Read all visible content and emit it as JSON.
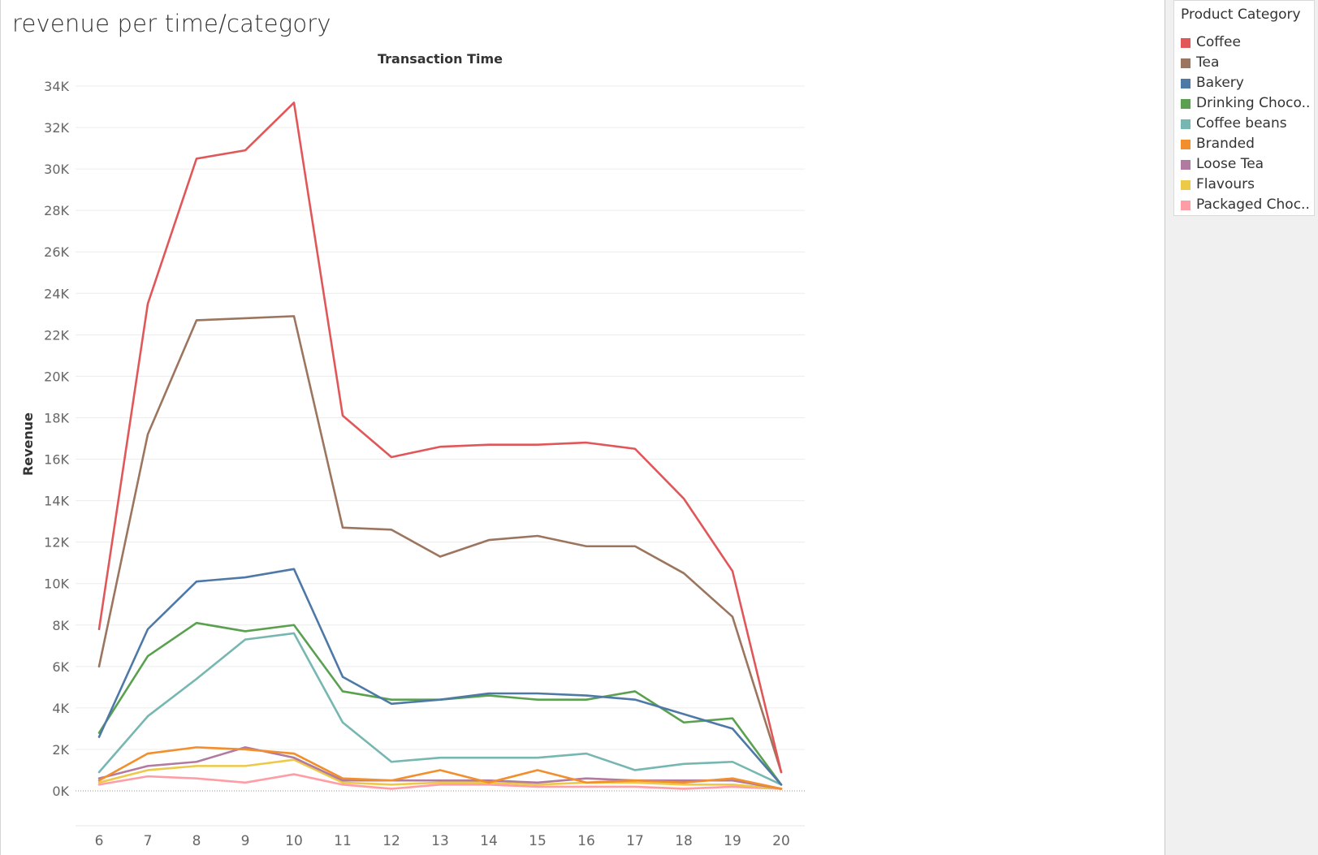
{
  "sheet": {
    "title": "revenue per time/category"
  },
  "legend": {
    "title": "Product Category",
    "items": [
      {
        "label": "Coffee",
        "color": "#e15759"
      },
      {
        "label": "Tea",
        "color": "#9c755f"
      },
      {
        "label": "Bakery",
        "color": "#4e79a7"
      },
      {
        "label": "Drinking Choco..",
        "color": "#59a14f"
      },
      {
        "label": "Coffee beans",
        "color": "#76b7b2"
      },
      {
        "label": "Branded",
        "color": "#f28e2b"
      },
      {
        "label": "Loose Tea",
        "color": "#b07aa1"
      },
      {
        "label": "Flavours",
        "color": "#edc948"
      },
      {
        "label": "Packaged Choc..",
        "color": "#ff9da7"
      }
    ]
  },
  "chart_data": {
    "type": "line",
    "title": "Transaction Time",
    "xlabel": "",
    "ylabel": "Revenue",
    "ylim": [
      0,
      34000
    ],
    "y_ticks": [
      "0K",
      "2K",
      "4K",
      "6K",
      "8K",
      "10K",
      "12K",
      "14K",
      "16K",
      "18K",
      "20K",
      "22K",
      "24K",
      "26K",
      "28K",
      "30K",
      "32K",
      "34K"
    ],
    "y_tick_values": [
      0,
      2000,
      4000,
      6000,
      8000,
      10000,
      12000,
      14000,
      16000,
      18000,
      20000,
      22000,
      24000,
      26000,
      28000,
      30000,
      32000,
      34000
    ],
    "categories": [
      "6",
      "7",
      "8",
      "9",
      "10",
      "11",
      "12",
      "13",
      "14",
      "15",
      "16",
      "17",
      "18",
      "19",
      "20"
    ],
    "grid": true,
    "legend_position": "right",
    "series": [
      {
        "name": "Coffee",
        "color": "#e15759",
        "values": [
          7800,
          23500,
          30500,
          30900,
          33200,
          18100,
          16100,
          16600,
          16700,
          16700,
          16800,
          16500,
          14100,
          10600,
          900
        ]
      },
      {
        "name": "Tea",
        "color": "#9c755f",
        "values": [
          6000,
          17200,
          22700,
          22800,
          22900,
          12700,
          12600,
          11300,
          12100,
          12300,
          11800,
          11800,
          10500,
          8400,
          900
        ]
      },
      {
        "name": "Bakery",
        "color": "#4e79a7",
        "values": [
          2600,
          7800,
          10100,
          10300,
          10700,
          5500,
          4200,
          4400,
          4700,
          4700,
          4600,
          4400,
          3700,
          3000,
          300
        ]
      },
      {
        "name": "Drinking Choco..",
        "color": "#59a14f",
        "values": [
          2800,
          6500,
          8100,
          7700,
          8000,
          4800,
          4400,
          4400,
          4600,
          4400,
          4400,
          4800,
          3300,
          3500,
          300
        ]
      },
      {
        "name": "Coffee beans",
        "color": "#76b7b2",
        "values": [
          900,
          3600,
          5400,
          7300,
          7600,
          3300,
          1400,
          1600,
          1600,
          1600,
          1800,
          1000,
          1300,
          1400,
          300
        ]
      },
      {
        "name": "Branded",
        "color": "#f28e2b",
        "values": [
          500,
          1800,
          2100,
          2000,
          1800,
          600,
          500,
          1000,
          400,
          1000,
          400,
          500,
          400,
          600,
          100
        ]
      },
      {
        "name": "Loose Tea",
        "color": "#b07aa1",
        "values": [
          600,
          1200,
          1400,
          2100,
          1600,
          500,
          500,
          500,
          500,
          400,
          600,
          500,
          500,
          500,
          100
        ]
      },
      {
        "name": "Flavours",
        "color": "#edc948",
        "values": [
          400,
          1000,
          1200,
          1200,
          1500,
          400,
          300,
          400,
          400,
          300,
          400,
          400,
          300,
          300,
          100
        ]
      },
      {
        "name": "Packaged Choc..",
        "color": "#ff9da7",
        "values": [
          300,
          700,
          600,
          400,
          800,
          300,
          100,
          300,
          300,
          200,
          200,
          200,
          100,
          200,
          100
        ]
      }
    ]
  }
}
